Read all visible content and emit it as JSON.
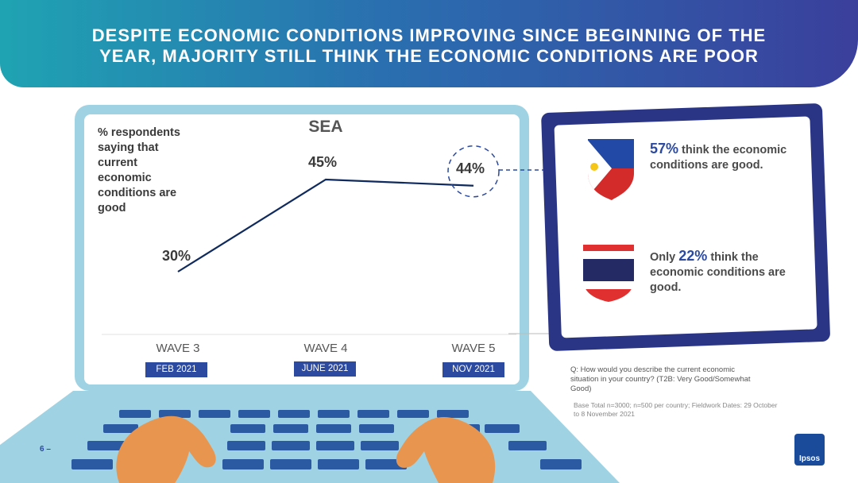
{
  "header": {
    "title_line1": "DESPITE ECONOMIC CONDITIONS IMPROVING SINCE BEGINNING OF THE",
    "title_line2": "YEAR, MAJORITY STILL THINK THE ECONOMIC CONDITIONS ARE POOR"
  },
  "chart_data": {
    "type": "line",
    "title": "SEA",
    "ylabel": "% respondents saying that current economic conditions are good",
    "categories": [
      "WAVE 3",
      "WAVE 4",
      "WAVE 5"
    ],
    "dates": [
      "FEB 2021",
      "JUNE 2021",
      "NOV 2021"
    ],
    "values": [
      30,
      45,
      44
    ],
    "value_labels": [
      "30%",
      "45%",
      "44%"
    ],
    "highlighted_point": "WAVE 5",
    "grid": false,
    "line_color": "#0f2a5c"
  },
  "callouts": [
    {
      "country_flag": "philippines-flag-icon",
      "prefix": "",
      "pct": "57%",
      "text": " think the economic conditions are good."
    },
    {
      "country_flag": "thailand-flag-icon",
      "prefix": "Only ",
      "pct": "22%",
      "text": " think the economic conditions are good."
    }
  ],
  "footnotes": {
    "question": "Q: How would you describe the current economic situation in your country? (T2B: Very Good/Somewhat Good)",
    "base": "Base Total n=3000; n=500 per country; Fieldwork Dates: 29 October to 8 November  2021"
  },
  "page_number": "6",
  "page_number_suffix": " –",
  "brand": {
    "name": "Ipsos",
    "color": "#1a4a9a"
  }
}
